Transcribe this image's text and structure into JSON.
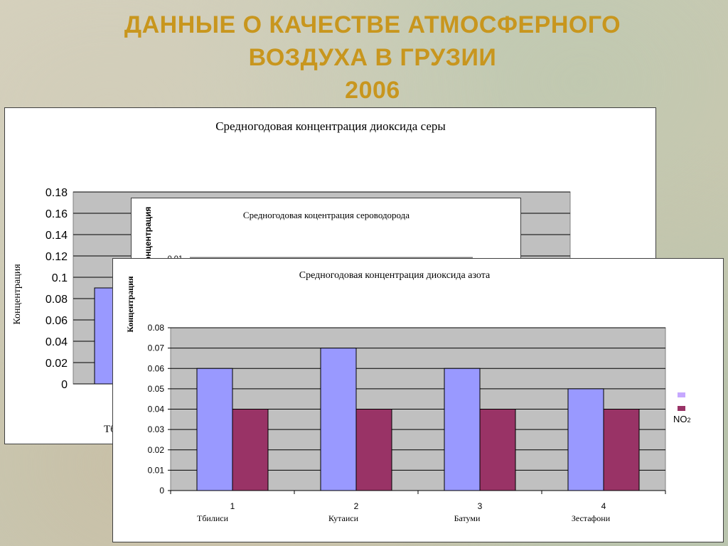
{
  "slide": {
    "title_lines": [
      "ДАННЫЕ О КАЧЕСТВЕ АТМОСФЕРНОГО",
      "ВОЗДУХА В ГРУЗИИ",
      "2006"
    ]
  },
  "colors": {
    "title": "#c8961e",
    "plot_bg": "#c0c0c0",
    "bar_series1": "#9999ff",
    "bar_series2": "#993366"
  },
  "chart_data": [
    {
      "type": "bar",
      "title": "Средногодовая  концентрация  диоксида  серы",
      "ylabel": "Концентрация",
      "ylim": [
        0,
        0.18
      ],
      "yticks": [
        "0",
        "0.02",
        "0.04",
        "0.06",
        "0.08",
        "0.1",
        "0.12",
        "0.14",
        "0.16",
        "0.18"
      ],
      "categories": [
        "Тбилиси"
      ],
      "visible_category_text": "Тб",
      "series": [
        {
          "values": [
            0.09
          ]
        }
      ],
      "grid": true,
      "partially_occluded": true
    },
    {
      "type": "bar",
      "title": "Средногодовая  коцентрация  сероводорода",
      "ylabel": "Концентрация",
      "visible_ylabel_text": "Концентрация",
      "ylim": [
        0,
        0.01
      ],
      "yticks": [
        "0.01"
      ],
      "grid": true,
      "partially_occluded": true
    },
    {
      "type": "bar",
      "title": "Средногодовая  концентрация  диоксида  азота",
      "ylabel": "Концентрация",
      "ylim": [
        0,
        0.08
      ],
      "yticks": [
        "0",
        "0.01",
        "0.02",
        "0.03",
        "0.04",
        "0.05",
        "0.06",
        "0.07",
        "0.08"
      ],
      "x": [
        "1",
        "2",
        "3",
        "4"
      ],
      "categories": [
        "Тбилиси",
        "Кутаиси",
        "Батуми",
        "Зестафони"
      ],
      "series": [
        {
          "values": [
            0.06,
            0.07,
            0.06,
            0.05
          ]
        },
        {
          "name": "NO2",
          "values": [
            0.04,
            0.04,
            0.04,
            0.04
          ]
        }
      ],
      "legend": "right",
      "legend_entries": [
        "",
        "NO2"
      ],
      "grid": true
    }
  ]
}
